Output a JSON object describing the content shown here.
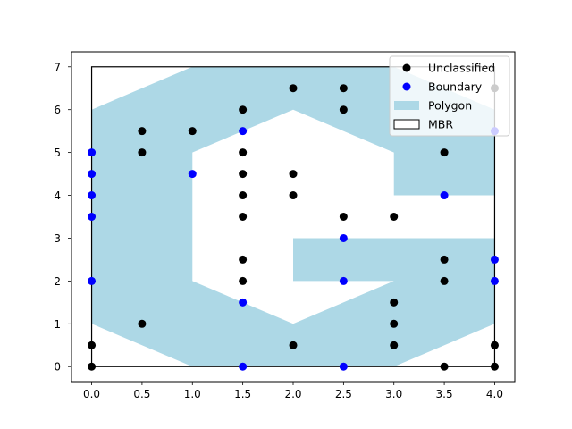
{
  "chart_data": {
    "type": "scatter",
    "title": "",
    "xlabel": "",
    "ylabel": "",
    "xlim": [
      -0.2,
      4.2
    ],
    "ylim": [
      -0.35,
      7.35
    ],
    "xticks": [
      0.0,
      0.5,
      1.0,
      1.5,
      2.0,
      2.5,
      3.0,
      3.5,
      4.0
    ],
    "xtick_labels": [
      "0.0",
      "0.5",
      "1.0",
      "1.5",
      "2.0",
      "2.5",
      "3.0",
      "3.5",
      "4.0"
    ],
    "yticks": [
      0,
      1,
      2,
      3,
      4,
      5,
      6,
      7
    ],
    "ytick_labels": [
      "0",
      "1",
      "2",
      "3",
      "4",
      "5",
      "6",
      "7"
    ],
    "grid": false,
    "legend_position": "top-right",
    "polygon": {
      "name": "Polygon",
      "color": "#add8e6",
      "vertices": [
        [
          0,
          1
        ],
        [
          0,
          6
        ],
        [
          1,
          7
        ],
        [
          3,
          7
        ],
        [
          4,
          6
        ],
        [
          4,
          4
        ],
        [
          3,
          4
        ],
        [
          3,
          5
        ],
        [
          2,
          6
        ],
        [
          1,
          5
        ],
        [
          1,
          2
        ],
        [
          2,
          1
        ],
        [
          3,
          2
        ],
        [
          2,
          2
        ],
        [
          2,
          3
        ],
        [
          4,
          3
        ],
        [
          4,
          1
        ],
        [
          3,
          0
        ],
        [
          1,
          0
        ]
      ]
    },
    "mbr": {
      "name": "MBR",
      "color": "#000000",
      "x": [
        0,
        4
      ],
      "y": [
        0,
        7
      ]
    },
    "series": [
      {
        "name": "Unclassified",
        "color": "#000000",
        "points": [
          [
            0,
            0
          ],
          [
            0,
            0.5
          ],
          [
            0.5,
            1
          ],
          [
            0.5,
            5
          ],
          [
            0.5,
            5.5
          ],
          [
            1,
            5.5
          ],
          [
            1.5,
            6
          ],
          [
            1.5,
            5
          ],
          [
            1.5,
            4.5
          ],
          [
            1.5,
            4
          ],
          [
            1.5,
            3.5
          ],
          [
            1.5,
            2.5
          ],
          [
            1.5,
            2
          ],
          [
            2,
            6.5
          ],
          [
            2,
            4.5
          ],
          [
            2,
            4
          ],
          [
            2,
            0.5
          ],
          [
            2.5,
            6.5
          ],
          [
            2.5,
            6
          ],
          [
            2.5,
            3.5
          ],
          [
            3,
            3.5
          ],
          [
            3,
            1.5
          ],
          [
            3,
            1
          ],
          [
            3,
            0.5
          ],
          [
            3.5,
            5
          ],
          [
            3.5,
            2.5
          ],
          [
            3.5,
            2
          ],
          [
            3.5,
            0
          ],
          [
            4,
            6.5
          ],
          [
            4,
            0.5
          ],
          [
            4,
            0
          ]
        ]
      },
      {
        "name": "Boundary",
        "color": "#0000ff",
        "points": [
          [
            0,
            5
          ],
          [
            0,
            4.5
          ],
          [
            0,
            4
          ],
          [
            0,
            3.5
          ],
          [
            0,
            2
          ],
          [
            1,
            4.5
          ],
          [
            1.5,
            5.5
          ],
          [
            1.5,
            1.5
          ],
          [
            1.5,
            0
          ],
          [
            2.5,
            3
          ],
          [
            2.5,
            2
          ],
          [
            2.5,
            0
          ],
          [
            3.5,
            4
          ],
          [
            4,
            5.5
          ],
          [
            4,
            2.5
          ],
          [
            4,
            2
          ]
        ]
      }
    ]
  }
}
